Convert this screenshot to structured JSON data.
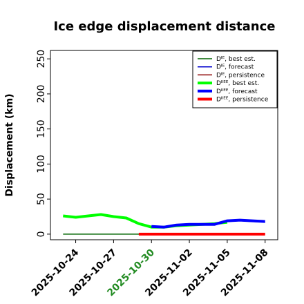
{
  "chart_data": {
    "type": "line",
    "title": "Ice edge displacement distance",
    "ylabel": "Displacement (km)",
    "xlabel": "",
    "ylim": [
      -8,
      262
    ],
    "xlim": [
      "2025-10-22",
      "2025-11-09"
    ],
    "yticks": [
      "0",
      "50",
      "100",
      "150",
      "200",
      "250"
    ],
    "ytick_values": [
      0,
      50,
      100,
      150,
      200,
      250
    ],
    "xticks": [
      {
        "date": "2025-10-24",
        "label": "2025-10-24",
        "color": "#000000"
      },
      {
        "date": "2025-10-27",
        "label": "2025-10-27",
        "color": "#000000"
      },
      {
        "date": "2025-10-30",
        "label": "2025-10-30",
        "color": "#228b22"
      },
      {
        "date": "2025-11-02",
        "label": "2025-11-02",
        "color": "#000000"
      },
      {
        "date": "2025-11-05",
        "label": "2025-11-05",
        "color": "#000000"
      },
      {
        "date": "2025-11-08",
        "label": "2025-11-08",
        "color": "#000000"
      }
    ],
    "grid": false,
    "legend_position": "top-right",
    "series": [
      {
        "name": "Dᴵᴱ, best est.",
        "color": "#006400",
        "width": 1.5,
        "points": [
          [
            "2025-10-23",
            0
          ],
          [
            "2025-10-24",
            0
          ],
          [
            "2025-10-25",
            0
          ],
          [
            "2025-10-26",
            0
          ],
          [
            "2025-10-27",
            0
          ],
          [
            "2025-10-28",
            0
          ],
          [
            "2025-10-29",
            0
          ],
          [
            "2025-10-30",
            0
          ]
        ]
      },
      {
        "name": "Dᴵᴱ, forecast",
        "color": "#0000cd",
        "width": 1.5,
        "points": [
          [
            "2025-10-30",
            10
          ],
          [
            "2025-10-31",
            9
          ],
          [
            "2025-11-01",
            13
          ],
          [
            "2025-11-02",
            13
          ],
          [
            "2025-11-03",
            14
          ],
          [
            "2025-11-04",
            14
          ],
          [
            "2025-11-05",
            18
          ],
          [
            "2025-11-06",
            19
          ],
          [
            "2025-11-07",
            18
          ],
          [
            "2025-11-08",
            17
          ]
        ]
      },
      {
        "name": "Dᴵᴱ, persistence",
        "color": "#8b0000",
        "width": 1.5,
        "points": [
          [
            "2025-10-29",
            0
          ],
          [
            "2025-11-08",
            0
          ]
        ]
      },
      {
        "name": "Dᴵᴵᴱᴱ, best est.",
        "color": "#00ff00",
        "width": 4,
        "points": [
          [
            "2025-10-23",
            26
          ],
          [
            "2025-10-24",
            24
          ],
          [
            "2025-10-25",
            26
          ],
          [
            "2025-10-26",
            28
          ],
          [
            "2025-10-27",
            25
          ],
          [
            "2025-10-28",
            23
          ],
          [
            "2025-10-29",
            15
          ],
          [
            "2025-10-30",
            10
          ],
          [
            "2025-10-31",
            10
          ],
          [
            "2025-11-01",
            12
          ],
          [
            "2025-11-02",
            13
          ],
          [
            "2025-11-03",
            14
          ],
          [
            "2025-11-04",
            15
          ],
          [
            "2025-11-05",
            17
          ]
        ]
      },
      {
        "name": "Dᴵᴵᴱᴱ, forecast",
        "color": "#0000ff",
        "width": 4,
        "points": [
          [
            "2025-10-30",
            11
          ],
          [
            "2025-10-31",
            10
          ],
          [
            "2025-11-01",
            13
          ],
          [
            "2025-11-02",
            14
          ],
          [
            "2025-11-03",
            14
          ],
          [
            "2025-11-04",
            14
          ],
          [
            "2025-11-05",
            19
          ],
          [
            "2025-11-06",
            20
          ],
          [
            "2025-11-07",
            19
          ],
          [
            "2025-11-08",
            18
          ]
        ]
      },
      {
        "name": "Dᴵᴵᴱᴱ, persistence",
        "color": "#ff0000",
        "width": 4,
        "points": [
          [
            "2025-10-29",
            0
          ],
          [
            "2025-11-08",
            0
          ]
        ]
      }
    ]
  }
}
